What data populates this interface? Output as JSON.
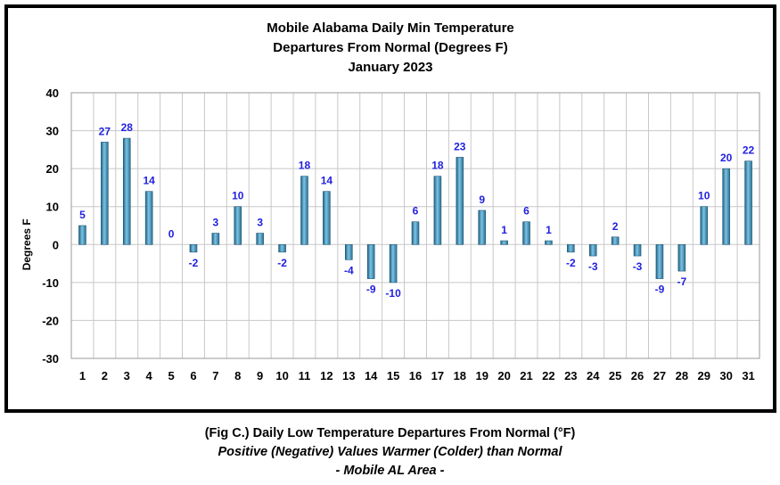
{
  "chart_data": {
    "type": "bar",
    "title_lines": [
      "Mobile Alabama Daily Min Temperature",
      "Departures From Normal (Degrees F)",
      "January 2023"
    ],
    "xlabel": "",
    "ylabel": "Degrees F",
    "ylim": [
      -30,
      40
    ],
    "yticks": [
      -30,
      -20,
      -10,
      0,
      10,
      20,
      30,
      40
    ],
    "grid": true,
    "categories": [
      "1",
      "2",
      "3",
      "4",
      "5",
      "6",
      "7",
      "8",
      "9",
      "10",
      "11",
      "12",
      "13",
      "14",
      "15",
      "16",
      "17",
      "18",
      "19",
      "20",
      "21",
      "22",
      "23",
      "24",
      "25",
      "26",
      "27",
      "28",
      "29",
      "30",
      "31"
    ],
    "values": [
      5,
      27,
      28,
      14,
      0,
      -2,
      3,
      10,
      3,
      -2,
      18,
      14,
      -4,
      -9,
      -10,
      6,
      18,
      23,
      9,
      1,
      6,
      1,
      -2,
      -3,
      2,
      -3,
      -9,
      -7,
      10,
      20,
      22
    ],
    "bar_color": "#4a9bc2",
    "label_color": "#1f1fe0",
    "grid_color": "#c8c8c8"
  },
  "caption": {
    "line1": "(Fig C.) Daily Low Temperature Departures From Normal (°F)",
    "line2": "Positive (Negative) Values Warmer (Colder) than Normal",
    "line3": "- Mobile AL Area -"
  }
}
